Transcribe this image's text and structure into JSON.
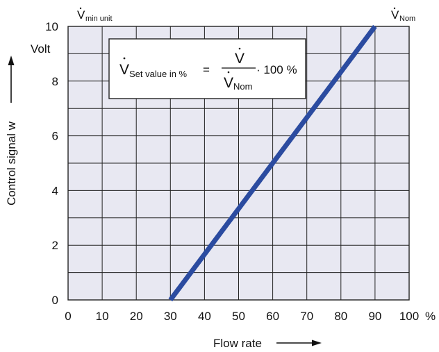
{
  "chart_data": {
    "type": "line",
    "xlabel": "Flow rate",
    "ylabel": "Control signal w",
    "y_unit_label": "Volt",
    "x_unit_label": "%",
    "xlim": [
      0,
      100
    ],
    "ylim": [
      0,
      10
    ],
    "x_ticks": [
      0,
      10,
      20,
      30,
      40,
      50,
      60,
      70,
      80,
      90,
      100
    ],
    "x_tick_labels": [
      "0",
      "10",
      "20",
      "30",
      "40",
      "50",
      "60",
      "70",
      "80",
      "90",
      "100"
    ],
    "y_ticks": [
      0,
      2,
      4,
      6,
      8,
      10
    ],
    "y_tick_labels": [
      "0",
      "2",
      "4",
      "6",
      "8",
      "10"
    ],
    "grid": true,
    "x_minor_step": 10,
    "y_minor_step": 1,
    "series": [
      {
        "x": [
          30,
          90
        ],
        "y": [
          0,
          10
        ]
      }
    ],
    "top_annotations": {
      "left": {
        "symbol": "V",
        "subscript": "min unit"
      },
      "right": {
        "symbol": "V",
        "subscript": "Nom"
      }
    },
    "formula": {
      "lhs_symbol": "V",
      "lhs_subscript": "Set value in %",
      "equals": "=",
      "numerator": "V",
      "denominator_symbol": "V",
      "denominator_subscript": "Nom",
      "multiplier": "· 100 %"
    },
    "colors": {
      "line": "#2b4ba0",
      "grid": "#222222",
      "plot_bg": "#e8e8f2"
    }
  }
}
